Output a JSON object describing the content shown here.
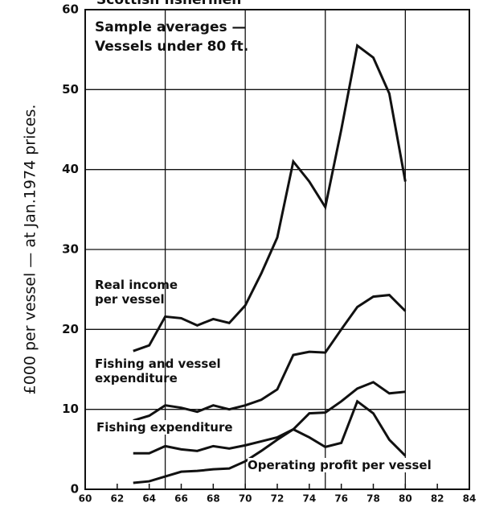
{
  "chart_data": {
    "type": "line",
    "title": "Scottish fishermen",
    "annotation": [
      "Sample averages —",
      "Vessels under 80 ft."
    ],
    "ylabel": "£000 per vessel — at Jan.1974 prices.",
    "x": [
      63,
      64,
      65,
      66,
      67,
      68,
      69,
      70,
      71,
      72,
      73,
      74,
      75,
      76,
      77,
      78,
      79,
      80
    ],
    "series": [
      {
        "name": "Real income per vessel",
        "color": "#111111",
        "values": [
          17.3,
          18,
          21.6,
          21.4,
          20.5,
          21.3,
          20.8,
          23,
          27,
          31.5,
          41,
          38.5,
          35.3,
          45,
          55.5,
          54,
          49.5,
          38.5
        ]
      },
      {
        "name": "Fishing and vessel expenditure",
        "color": "#111111",
        "values": [
          8.6,
          9.2,
          10.5,
          10.2,
          9.7,
          10.5,
          10,
          10.5,
          11.2,
          12.5,
          16.8,
          17.2,
          17.1,
          20,
          22.8,
          24.1,
          24.3,
          22.3
        ]
      },
      {
        "name": "Fishing expenditure",
        "color": "#111111",
        "values": [
          4.5,
          4.5,
          5.4,
          5,
          4.8,
          5.4,
          5.1,
          5.5,
          6,
          6.5,
          7.5,
          9.5,
          9.6,
          11,
          12.6,
          13.4,
          12,
          12.2
        ]
      },
      {
        "name": "Operating profit per vessel",
        "color": "#111111",
        "values": [
          0.8,
          1,
          1.6,
          2.2,
          2.3,
          2.5,
          2.6,
          3.5,
          4.8,
          6.2,
          7.5,
          6.5,
          5.3,
          5.8,
          11,
          9.5,
          6.2,
          4.2
        ]
      }
    ],
    "xlim": [
      60,
      84
    ],
    "xticks": [
      60,
      62,
      64,
      66,
      68,
      70,
      72,
      74,
      76,
      78,
      80,
      82,
      84
    ],
    "xgrid": [
      65,
      70,
      75,
      80
    ],
    "ylim": [
      0,
      60
    ],
    "yticks": [
      0,
      10,
      20,
      30,
      40,
      50,
      60
    ],
    "grid": true
  }
}
